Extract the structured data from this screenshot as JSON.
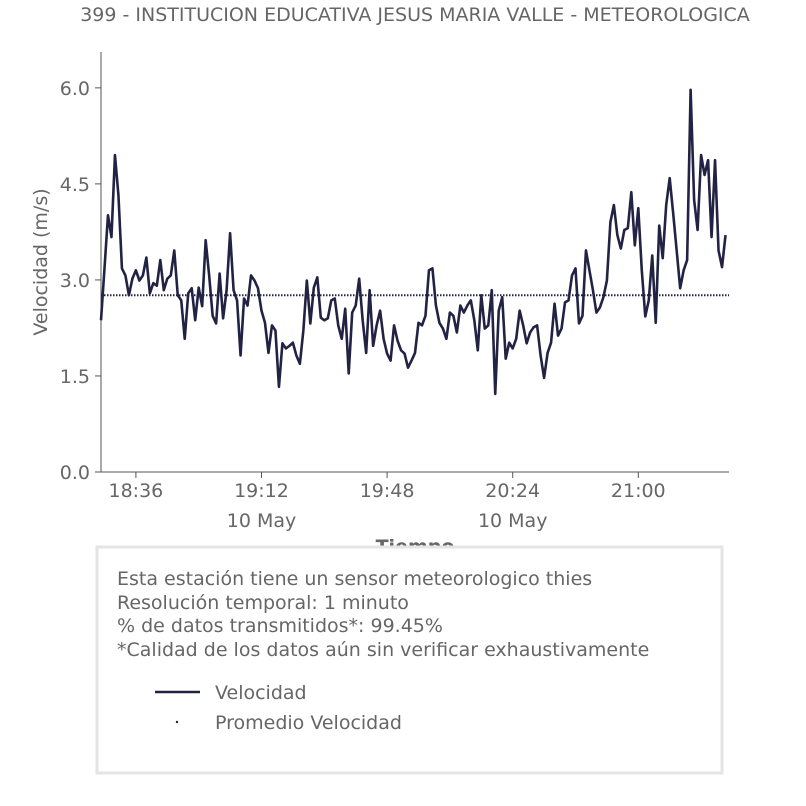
{
  "chart_data": {
    "type": "line",
    "title": "399 - INSTITUCION EDUCATIVA JESUS MARIA VALLE - METEOROLOGICA",
    "y_label": "Velocidad (m/s)",
    "x_label": "Tiempo",
    "xlim": [
      "18:26",
      "21:26"
    ],
    "xticks": [
      "18:36",
      "19:12",
      "19:48",
      "20:24",
      "21:00"
    ],
    "xtick_dates": [
      {
        "at": "19:12",
        "label": "10 May"
      },
      {
        "at": "20:24",
        "label": "10 May"
      }
    ],
    "ylim": [
      0,
      6.56
    ],
    "yticks": [
      {
        "value": 0,
        "label": "0.0"
      },
      {
        "value": 1.5,
        "label": "1.5"
      },
      {
        "value": 3,
        "label": "3.0"
      },
      {
        "value": 4.5,
        "label": "4.5"
      },
      {
        "value": 6,
        "label": "6.0"
      }
    ],
    "x": [
      "18:26",
      "18:27",
      "18:28",
      "18:29",
      "18:30",
      "18:31",
      "18:32",
      "18:33",
      "18:34",
      "18:35",
      "18:36",
      "18:37",
      "18:38",
      "18:39",
      "18:40",
      "18:41",
      "18:42",
      "18:43",
      "18:44",
      "18:45",
      "18:46",
      "18:47",
      "18:48",
      "18:49",
      "18:50",
      "18:51",
      "18:52",
      "18:53",
      "18:54",
      "18:55",
      "18:56",
      "18:57",
      "18:58",
      "18:59",
      "19:00",
      "19:01",
      "19:02",
      "19:03",
      "19:04",
      "19:05",
      "19:06",
      "19:07",
      "19:08",
      "19:09",
      "19:10",
      "19:11",
      "19:12",
      "19:13",
      "19:14",
      "19:15",
      "19:16",
      "19:17",
      "19:18",
      "19:19",
      "19:20",
      "19:21",
      "19:22",
      "19:23",
      "19:24",
      "19:25",
      "19:26",
      "19:27",
      "19:28",
      "19:29",
      "19:30",
      "19:31",
      "19:32",
      "19:33",
      "19:34",
      "19:35",
      "19:36",
      "19:37",
      "19:38",
      "19:39",
      "19:40",
      "19:41",
      "19:42",
      "19:43",
      "19:44",
      "19:45",
      "19:46",
      "19:47",
      "19:48",
      "19:49",
      "19:50",
      "19:51",
      "19:52",
      "19:53",
      "19:54",
      "19:55",
      "19:56",
      "19:57",
      "19:58",
      "19:59",
      "20:00",
      "20:01",
      "20:02",
      "20:03",
      "20:04",
      "20:05",
      "20:06",
      "20:07",
      "20:08",
      "20:09",
      "20:10",
      "20:11",
      "20:12",
      "20:13",
      "20:14",
      "20:15",
      "20:16",
      "20:17",
      "20:18",
      "20:19",
      "20:20",
      "20:21",
      "20:22",
      "20:23",
      "20:24",
      "20:25",
      "20:26",
      "20:27",
      "20:28",
      "20:29",
      "20:30",
      "20:31",
      "20:32",
      "20:33",
      "20:34",
      "20:35",
      "20:36",
      "20:37",
      "20:38",
      "20:39",
      "20:40",
      "20:41",
      "20:42",
      "20:43",
      "20:44",
      "20:45",
      "20:46",
      "20:47",
      "20:48",
      "20:49",
      "20:50",
      "20:51",
      "20:52",
      "20:53",
      "20:54",
      "20:55",
      "20:56",
      "20:57",
      "20:58",
      "20:59",
      "21:00",
      "21:01",
      "21:02",
      "21:03",
      "21:04",
      "21:05",
      "21:06",
      "21:07",
      "21:08",
      "21:09",
      "21:10",
      "21:11",
      "21:12",
      "21:13",
      "21:14",
      "21:15",
      "21:16",
      "21:17",
      "21:18",
      "21:19",
      "21:20",
      "21:21",
      "21:22",
      "21:23",
      "21:24",
      "21:25"
    ],
    "series": [
      {
        "name": "Velocidad",
        "color": "#222244",
        "values": [
          2.37,
          3.18,
          4.01,
          3.67,
          4.95,
          4.32,
          3.18,
          3.07,
          2.76,
          3.02,
          3.15,
          2.99,
          3.07,
          3.35,
          2.79,
          2.95,
          2.91,
          3.31,
          2.84,
          3.02,
          3.07,
          3.46,
          2.76,
          2.68,
          2.08,
          2.79,
          2.87,
          2.37,
          2.88,
          2.59,
          3.62,
          3.07,
          2.44,
          2.32,
          3.1,
          2.4,
          2.84,
          3.73,
          2.84,
          2.68,
          1.82,
          2.71,
          2.6,
          3.07,
          2.99,
          2.87,
          2.52,
          2.33,
          1.86,
          2.29,
          2.21,
          1.33,
          2.01,
          1.93,
          1.97,
          2.02,
          1.82,
          1.69,
          2.21,
          2.99,
          2.32,
          2.88,
          3.04,
          2.41,
          2.37,
          2.4,
          2.68,
          2.71,
          2.29,
          2.08,
          2.55,
          1.54,
          2.49,
          2.6,
          3.02,
          2.37,
          1.86,
          2.84,
          1.97,
          2.29,
          2.52,
          2.08,
          1.85,
          1.74,
          2.29,
          2.05,
          1.9,
          1.85,
          1.63,
          1.74,
          1.86,
          2.33,
          2.29,
          2.44,
          3.15,
          3.18,
          2.6,
          2.33,
          2.24,
          2.08,
          2.49,
          2.44,
          2.18,
          2.6,
          2.49,
          2.6,
          2.68,
          2.37,
          1.9,
          2.76,
          2.24,
          2.29,
          2.84,
          1.22,
          2.52,
          2.73,
          1.77,
          2.02,
          1.93,
          2.08,
          2.52,
          2.29,
          2.01,
          2.18,
          2.26,
          2.29,
          1.82,
          1.47,
          1.86,
          2.02,
          2.63,
          2.13,
          2.24,
          2.65,
          2.68,
          3.07,
          3.18,
          2.32,
          2.44,
          3.46,
          3.15,
          2.84,
          2.49,
          2.57,
          2.73,
          2.99,
          3.9,
          4.17,
          3.7,
          3.49,
          3.78,
          3.81,
          4.37,
          3.54,
          4.12,
          3.15,
          2.43,
          2.68,
          3.38,
          2.33,
          3.85,
          3.34,
          4.17,
          4.59,
          4.04,
          3.46,
          2.87,
          3.15,
          3.31,
          5.97,
          4.25,
          3.78,
          4.95,
          4.64,
          4.87,
          3.67,
          4.87,
          3.46,
          3.2,
          3.7
        ]
      },
      {
        "name": "Promedio Velocidad",
        "color": "#222244",
        "value": 2.76
      }
    ],
    "notes": [
      "Esta estación tiene un sensor meteorologico thies",
      "Resolución temporal: 1 minuto",
      "% de datos transmitidos*: 99.45%",
      "*Calidad de los datos aún sin verificar exhaustivamente"
    ]
  }
}
